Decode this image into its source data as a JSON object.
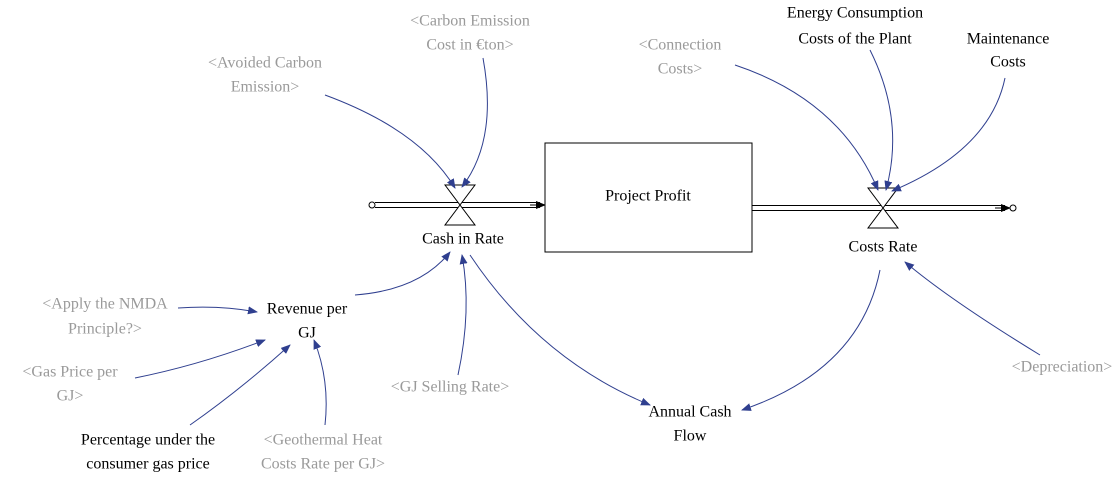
{
  "stock": {
    "label": [
      "Project Profit"
    ]
  },
  "flows": [
    {
      "label": [
        "Cash in Rate"
      ]
    },
    {
      "label": [
        "Costs Rate"
      ]
    }
  ],
  "variables": [
    {
      "label": [
        "<Carbon Emission",
        "Cost in €ton>"
      ]
    },
    {
      "label": [
        "<Avoided Carbon",
        "Emission>"
      ]
    },
    {
      "label": [
        "<Connection",
        "Costs>"
      ]
    },
    {
      "label": [
        "Energy Consumption",
        "Costs of the Plant"
      ]
    },
    {
      "label": [
        "Maintenance",
        "Costs"
      ]
    },
    {
      "label": [
        "Revenue per",
        "GJ"
      ]
    },
    {
      "label": [
        "<Apply the NMDA",
        "Principle?>"
      ]
    },
    {
      "label": [
        "<Gas Price per",
        "GJ>"
      ]
    },
    {
      "label": [
        "Percentage under the",
        "consumer gas price"
      ]
    },
    {
      "label": [
        "<Geothermal Heat",
        "Costs Rate per GJ>"
      ]
    },
    {
      "label": [
        "<GJ Selling Rate>"
      ]
    },
    {
      "label": [
        "Annual Cash",
        "Flow"
      ]
    },
    {
      "label": [
        "<Depreciation>"
      ]
    }
  ]
}
